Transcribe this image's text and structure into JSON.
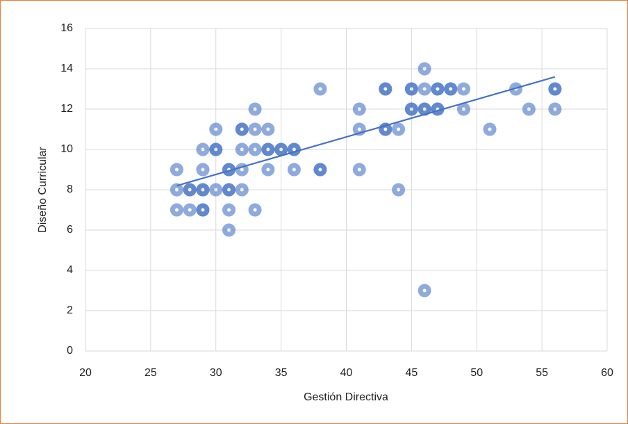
{
  "chart_data": {
    "type": "scatter",
    "xlabel": "Gestión Directiva",
    "ylabel": "Diseño Curricular",
    "x": [
      27,
      27,
      27,
      28,
      28,
      28,
      29,
      29,
      29,
      29,
      29,
      29,
      30,
      30,
      30,
      30,
      31,
      31,
      31,
      31,
      31,
      31,
      32,
      32,
      32,
      32,
      32,
      33,
      33,
      33,
      33,
      34,
      34,
      34,
      34,
      35,
      35,
      36,
      36,
      36,
      38,
      38,
      38,
      41,
      41,
      41,
      43,
      43,
      43,
      43,
      44,
      44,
      45,
      45,
      45,
      45,
      46,
      46,
      46,
      46,
      46,
      47,
      47,
      47,
      47,
      48,
      48,
      49,
      49,
      51,
      53,
      54,
      56,
      56,
      56
    ],
    "y": [
      9,
      8,
      7,
      8,
      8,
      7,
      10,
      9,
      8,
      8,
      7,
      7,
      11,
      10,
      10,
      8,
      9,
      9,
      8,
      8,
      7,
      6,
      11,
      11,
      10,
      9,
      8,
      12,
      11,
      10,
      7,
      11,
      10,
      10,
      9,
      10,
      10,
      10,
      10,
      9,
      13,
      9,
      9,
      12,
      11,
      9,
      13,
      13,
      11,
      11,
      11,
      8,
      13,
      13,
      12,
      12,
      14,
      13,
      12,
      12,
      3,
      13,
      13,
      12,
      12,
      13,
      13,
      13,
      12,
      11,
      13,
      12,
      13,
      13,
      12
    ],
    "color": "#4472c4",
    "trendline": {
      "x": [
        27,
        56
      ],
      "y": [
        8.2,
        13.6
      ],
      "color": "#4472c4"
    },
    "xlim": [
      20,
      60
    ],
    "xticks": [
      20,
      25,
      30,
      35,
      40,
      45,
      50,
      55,
      60
    ],
    "ylim": [
      0,
      16
    ],
    "yticks": [
      0,
      2,
      4,
      6,
      8,
      10,
      12,
      14,
      16
    ],
    "grid": true
  }
}
